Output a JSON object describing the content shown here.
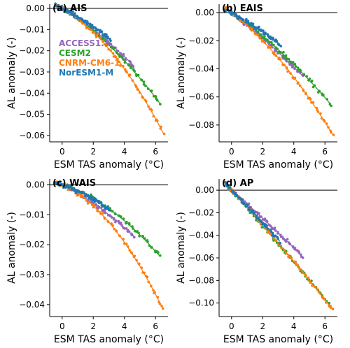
{
  "figure": {
    "xlabel": "ESM TAS anomaly (°C)",
    "ylabel": "AL anomaly (-)"
  },
  "legend": [
    {
      "name": "ACCESS1.3",
      "color": "#9467bd"
    },
    {
      "name": "CESM2",
      "color": "#2ca02c"
    },
    {
      "name": "CNRM-CM6-1",
      "color": "#ff7f0e"
    },
    {
      "name": "NorESM1-M",
      "color": "#1f77b4"
    }
  ],
  "chart_data": [
    {
      "type": "scatter",
      "title": "(a) AIS",
      "xlabel": "ESM TAS anomaly (°C)",
      "ylabel": "AL anomaly (-)",
      "xlim": [
        -0.8,
        6.8
      ],
      "ylim": [
        -0.063,
        0.002
      ],
      "xticks": [
        0,
        2,
        4,
        6
      ],
      "xtick_labels": [
        "0",
        "2",
        "4",
        "6"
      ],
      "yticks": [
        0,
        -0.01,
        -0.02,
        -0.03,
        -0.04,
        -0.05,
        -0.06
      ],
      "ytick_labels": [
        "0.00",
        "−0.01",
        "−0.02",
        "−0.03",
        "−0.04",
        "−0.05",
        "−0.06"
      ],
      "zero_line": true,
      "legend_position": "upper-left",
      "series": [
        {
          "name": "ACCESS1.3",
          "color": "#9467bd",
          "xmax": 4.6,
          "fit": [
            0,
            -0.0045,
            -0.0003
          ]
        },
        {
          "name": "CESM2",
          "color": "#2ca02c",
          "xmax": 6.3,
          "fit": [
            0,
            -0.0045,
            -0.00042
          ]
        },
        {
          "name": "CNRM-CM6-1",
          "color": "#ff7f0e",
          "xmax": 6.5,
          "fit": [
            0,
            -0.004,
            -0.00078
          ]
        },
        {
          "name": "NorESM1-M",
          "color": "#1f77b4",
          "xmax": 3.1,
          "fit": [
            0,
            -0.0035,
            -0.0004
          ]
        }
      ]
    },
    {
      "type": "scatter",
      "title": "(b) EAIS",
      "xlabel": "ESM TAS anomaly (°C)",
      "ylabel": "AL anomaly (-)",
      "xlim": [
        -0.8,
        6.8
      ],
      "ylim": [
        -0.092,
        0.006
      ],
      "xticks": [
        0,
        2,
        4,
        6
      ],
      "xtick_labels": [
        "0",
        "2",
        "4",
        "6"
      ],
      "yticks": [
        0,
        -0.02,
        -0.04,
        -0.06,
        -0.08
      ],
      "ytick_labels": [
        "0.00",
        "−0.02",
        "−0.04",
        "−0.06",
        "−0.08"
      ],
      "zero_line": true,
      "series": [
        {
          "name": "ACCESS1.3",
          "color": "#9467bd",
          "xmax": 4.6,
          "fit": [
            0,
            -0.0085,
            -0.0003
          ]
        },
        {
          "name": "CESM2",
          "color": "#2ca02c",
          "xmax": 6.3,
          "fit": [
            0,
            -0.0075,
            -0.00043
          ]
        },
        {
          "name": "CNRM-CM6-1",
          "color": "#ff7f0e",
          "xmax": 6.5,
          "fit": [
            0,
            -0.0085,
            -0.00075
          ]
        },
        {
          "name": "NorESM1-M",
          "color": "#1f77b4",
          "xmax": 3.1,
          "fit": [
            0,
            -0.006,
            -0.0004
          ]
        }
      ]
    },
    {
      "type": "scatter",
      "title": "(c) WAIS",
      "xlabel": "ESM TAS anomaly (°C)",
      "ylabel": "AL anomaly (-)",
      "xlim": [
        -0.8,
        6.8
      ],
      "ylim": [
        -0.044,
        0.002
      ],
      "xticks": [
        0,
        2,
        4,
        6
      ],
      "xtick_labels": [
        "0",
        "2",
        "4",
        "6"
      ],
      "yticks": [
        0,
        -0.01,
        -0.02,
        -0.03,
        -0.04
      ],
      "ytick_labels": [
        "0.00",
        "−0.01",
        "−0.02",
        "−0.03",
        "−0.04"
      ],
      "zero_line": true,
      "series": [
        {
          "name": "ACCESS1.3",
          "color": "#9467bd",
          "xmax": 4.6,
          "fit": [
            0,
            -0.0025,
            -0.00027
          ]
        },
        {
          "name": "CESM2",
          "color": "#2ca02c",
          "xmax": 6.3,
          "fit": [
            0,
            -0.0016,
            -0.00035
          ]
        },
        {
          "name": "CNRM-CM6-1",
          "color": "#ff7f0e",
          "xmax": 6.5,
          "fit": [
            0,
            -0.0022,
            -0.00065
          ]
        },
        {
          "name": "NorESM1-M",
          "color": "#1f77b4",
          "xmax": 3.1,
          "fit": [
            0,
            -0.0015,
            -0.0004
          ]
        }
      ]
    },
    {
      "type": "scatter",
      "title": "(d) AP",
      "xlabel": "ESM TAS anomaly (°C)",
      "ylabel": "AL anomaly (-)",
      "xlim": [
        -0.8,
        6.8
      ],
      "ylim": [
        -0.112,
        0.01
      ],
      "xticks": [
        0,
        2,
        4,
        6
      ],
      "xtick_labels": [
        "0",
        "2",
        "4",
        "6"
      ],
      "yticks": [
        0,
        -0.02,
        -0.04,
        -0.06,
        -0.08,
        -0.1
      ],
      "ytick_labels": [
        "0.00",
        "−0.02",
        "−0.04",
        "−0.06",
        "−0.08",
        "−0.10"
      ],
      "zero_line": true,
      "series": [
        {
          "name": "ACCESS1.3",
          "color": "#9467bd",
          "xmax": 4.6,
          "fit": [
            0,
            -0.012,
            -0.0002
          ]
        },
        {
          "name": "CESM2",
          "color": "#2ca02c",
          "xmax": 6.3,
          "fit": [
            0,
            -0.0155,
            -0.0001
          ]
        },
        {
          "name": "CNRM-CM6-1",
          "color": "#ff7f0e",
          "xmax": 6.5,
          "fit": [
            0,
            -0.015,
            -0.0002
          ]
        },
        {
          "name": "NorESM1-M",
          "color": "#1f77b4",
          "xmax": 3.1,
          "fit": [
            0,
            -0.014,
            -0.0002
          ]
        }
      ]
    }
  ]
}
